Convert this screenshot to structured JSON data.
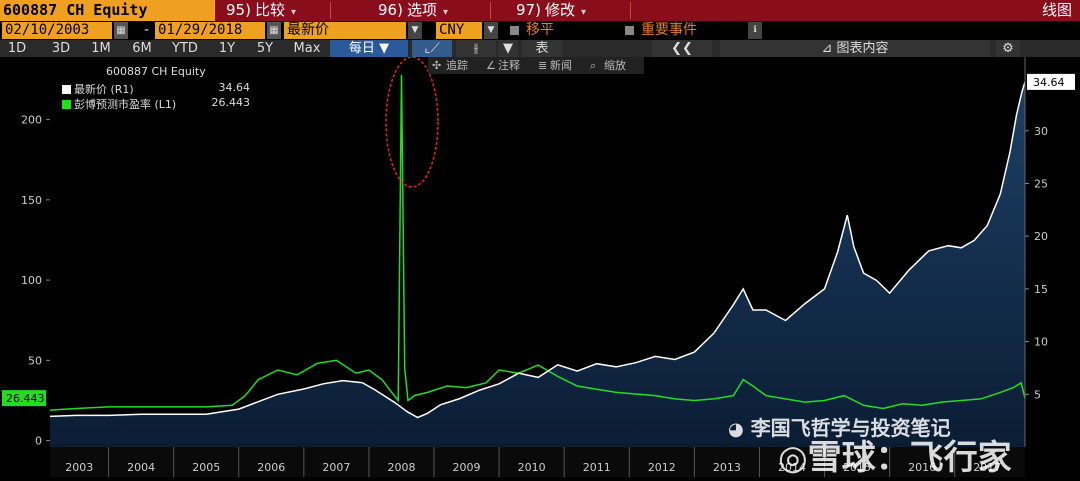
{
  "header": {
    "ticker": "600887 CH Equity",
    "menu": [
      {
        "num": "95)",
        "label": "比较"
      },
      {
        "num": "96)",
        "label": "选项"
      },
      {
        "num": "97)",
        "label": "修改"
      }
    ],
    "chart_type_label": "线图"
  },
  "controls": {
    "start_date": "02/10/2003",
    "end_date": "01/29/2018",
    "field": "最新价",
    "currency": "CNY",
    "moving_avg_label": "移平",
    "events_label": "重要事件"
  },
  "periods": {
    "items": [
      "1D",
      "3D",
      "1M",
      "6M",
      "YTD",
      "1Y",
      "5Y",
      "Max"
    ],
    "frequency": "每日",
    "table_label": "表",
    "chart_content_label": "图表内容"
  },
  "chart_tools": {
    "track": "追踪",
    "annotate": "注释",
    "news": "新闻",
    "zoom": "缩放"
  },
  "legend": {
    "title": "600887 CH Equity",
    "items": [
      {
        "label": "最新价 (R1)",
        "value": "34.64",
        "color": "#ffffff"
      },
      {
        "label": "彭博预测市盈率 (L1)",
        "value": "26.443",
        "color": "#22dd22"
      }
    ]
  },
  "badges": {
    "right_last": "34.64",
    "left_last": "26.443"
  },
  "watermark": {
    "account": "李国飞哲学与投资笔记",
    "brand": "雪球：飞行家"
  },
  "chart_data": {
    "type": "line",
    "x_range": [
      2003.1,
      2018.08
    ],
    "x_ticks": [
      "2003",
      "2004",
      "2005",
      "2006",
      "2007",
      "2008",
      "2009",
      "2010",
      "2011",
      "2012",
      "2013",
      "2014",
      "2015",
      "2016",
      "2017"
    ],
    "left_axis": {
      "ticks": [
        0,
        50,
        100,
        150,
        200
      ],
      "range": [
        -4,
        239
      ]
    },
    "right_axis": {
      "ticks": [
        5,
        10,
        15,
        20,
        25,
        30
      ],
      "range": [
        0,
        37
      ]
    },
    "grid": false,
    "legend_position": "top-left",
    "series": [
      {
        "name": "最新价",
        "axis": "right",
        "color": "#ffffff",
        "fill": true,
        "x": [
          2003.1,
          2003.5,
          2004.0,
          2004.5,
          2005.0,
          2005.5,
          2006.0,
          2006.3,
          2006.6,
          2007.0,
          2007.3,
          2007.6,
          2007.9,
          2008.1,
          2008.4,
          2008.6,
          2008.75,
          2008.9,
          2009.1,
          2009.4,
          2009.7,
          2010.0,
          2010.3,
          2010.6,
          2010.9,
          2011.2,
          2011.5,
          2011.8,
          2012.1,
          2012.4,
          2012.7,
          2013.0,
          2013.3,
          2013.6,
          2013.75,
          2013.9,
          2014.1,
          2014.4,
          2014.7,
          2015.0,
          2015.2,
          2015.35,
          2015.45,
          2015.6,
          2015.8,
          2016.0,
          2016.3,
          2016.6,
          2016.9,
          2017.1,
          2017.3,
          2017.5,
          2017.7,
          2017.85,
          2017.95,
          2018.03,
          2018.08
        ],
        "values": [
          2.9,
          3.0,
          3.0,
          3.1,
          3.1,
          3.1,
          3.6,
          4.3,
          5.0,
          5.5,
          6.0,
          6.3,
          6.1,
          5.4,
          4.2,
          3.3,
          2.8,
          3.2,
          4.0,
          4.6,
          5.4,
          6.0,
          7.0,
          6.6,
          7.8,
          7.2,
          7.9,
          7.6,
          8.0,
          8.6,
          8.3,
          9.0,
          10.8,
          13.5,
          15.0,
          13.0,
          13.0,
          12.0,
          13.6,
          15.0,
          18.5,
          22.0,
          19.0,
          16.5,
          15.8,
          14.6,
          16.8,
          18.6,
          19.1,
          18.9,
          19.6,
          21.0,
          24.0,
          28.0,
          31.5,
          33.6,
          34.64
        ]
      },
      {
        "name": "彭博预测市盈率",
        "axis": "left",
        "color": "#22dd22",
        "fill": false,
        "x": [
          2003.1,
          2003.5,
          2004.0,
          2004.5,
          2005.0,
          2005.5,
          2005.9,
          2006.1,
          2006.3,
          2006.6,
          2006.9,
          2007.2,
          2007.5,
          2007.8,
          2008.0,
          2008.2,
          2008.35,
          2008.45,
          2008.5,
          2008.55,
          2008.6,
          2008.7,
          2008.9,
          2009.2,
          2009.5,
          2009.8,
          2010.0,
          2010.3,
          2010.6,
          2010.9,
          2011.2,
          2011.5,
          2011.8,
          2012.1,
          2012.4,
          2012.7,
          2013.0,
          2013.3,
          2013.6,
          2013.75,
          2013.9,
          2014.1,
          2014.4,
          2014.7,
          2015.0,
          2015.3,
          2015.6,
          2015.9,
          2016.2,
          2016.5,
          2016.8,
          2017.1,
          2017.4,
          2017.7,
          2017.9,
          2018.02,
          2018.08
        ],
        "values": [
          19,
          20,
          21,
          21,
          21,
          21,
          22,
          28,
          38,
          44,
          41,
          48,
          50,
          42,
          44,
          38,
          30,
          25,
          228,
          45,
          25,
          28,
          30,
          34,
          33,
          36,
          44,
          42,
          47,
          40,
          34,
          32,
          30,
          29,
          28,
          26,
          25,
          26,
          28,
          38,
          34,
          28,
          26,
          24,
          25,
          28,
          22,
          20,
          23,
          22,
          24,
          25,
          26,
          30,
          33,
          36,
          26.443
        ]
      }
    ]
  }
}
